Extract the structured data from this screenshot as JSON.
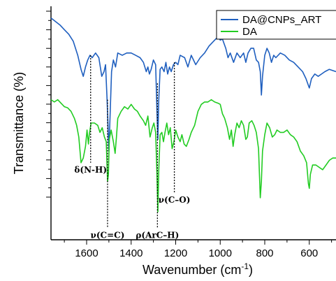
{
  "chart_data": {
    "type": "line",
    "xlabel": "Wavenumber (cm",
    "xlabel_sup": "-1",
    "xlabel_end": ")",
    "ylabel": "Transmittance (%)",
    "xlim": [
      1760,
      480
    ],
    "x_reversed": true,
    "xticks": [
      1600,
      1400,
      1200,
      1000,
      800,
      600
    ],
    "xtick_labels": [
      "1600",
      "1400",
      "1200",
      "1000",
      "800",
      "600"
    ],
    "ylim": [
      0,
      1
    ],
    "y_tick_labels_shown": false,
    "grid": false,
    "legend": "top-right",
    "series": [
      {
        "name": "DA@CNPs_ART",
        "color": "#1f5fbf",
        "points": [
          [
            1760,
            0.95
          ],
          [
            1740,
            0.935
          ],
          [
            1720,
            0.92
          ],
          [
            1700,
            0.9
          ],
          [
            1680,
            0.88
          ],
          [
            1660,
            0.85
          ],
          [
            1640,
            0.79
          ],
          [
            1625,
            0.73
          ],
          [
            1615,
            0.7
          ],
          [
            1605,
            0.74
          ],
          [
            1595,
            0.77
          ],
          [
            1585,
            0.79
          ],
          [
            1575,
            0.78
          ],
          [
            1560,
            0.8
          ],
          [
            1545,
            0.78
          ],
          [
            1532,
            0.7
          ],
          [
            1522,
            0.72
          ],
          [
            1515,
            0.75
          ],
          [
            1508,
            0.6
          ],
          [
            1500,
            0.38
          ],
          [
            1494,
            0.55
          ],
          [
            1488,
            0.72
          ],
          [
            1480,
            0.77
          ],
          [
            1470,
            0.74
          ],
          [
            1460,
            0.8
          ],
          [
            1440,
            0.79
          ],
          [
            1420,
            0.8
          ],
          [
            1400,
            0.8
          ],
          [
            1380,
            0.79
          ],
          [
            1360,
            0.78
          ],
          [
            1345,
            0.76
          ],
          [
            1332,
            0.72
          ],
          [
            1325,
            0.74
          ],
          [
            1318,
            0.71
          ],
          [
            1310,
            0.73
          ],
          [
            1300,
            0.77
          ],
          [
            1290,
            0.75
          ],
          [
            1284,
            0.55
          ],
          [
            1280,
            0.43
          ],
          [
            1276,
            0.6
          ],
          [
            1270,
            0.73
          ],
          [
            1262,
            0.74
          ],
          [
            1252,
            0.72
          ],
          [
            1244,
            0.76
          ],
          [
            1236,
            0.71
          ],
          [
            1228,
            0.74
          ],
          [
            1220,
            0.72
          ],
          [
            1210,
            0.75
          ],
          [
            1200,
            0.76
          ],
          [
            1190,
            0.75
          ],
          [
            1180,
            0.79
          ],
          [
            1160,
            0.78
          ],
          [
            1145,
            0.74
          ],
          [
            1130,
            0.79
          ],
          [
            1110,
            0.75
          ],
          [
            1090,
            0.78
          ],
          [
            1070,
            0.8
          ],
          [
            1050,
            0.83
          ],
          [
            1030,
            0.85
          ],
          [
            1010,
            0.87
          ],
          [
            1000,
            0.855
          ],
          [
            990,
            0.86
          ],
          [
            975,
            0.82
          ],
          [
            965,
            0.78
          ],
          [
            955,
            0.8
          ],
          [
            940,
            0.76
          ],
          [
            925,
            0.8
          ],
          [
            910,
            0.78
          ],
          [
            895,
            0.8
          ],
          [
            885,
            0.76
          ],
          [
            875,
            0.8
          ],
          [
            862,
            0.82
          ],
          [
            850,
            0.82
          ],
          [
            838,
            0.77
          ],
          [
            828,
            0.76
          ],
          [
            820,
            0.72
          ],
          [
            815,
            0.62
          ],
          [
            810,
            0.7
          ],
          [
            800,
            0.79
          ],
          [
            790,
            0.82
          ],
          [
            780,
            0.8
          ],
          [
            770,
            0.76
          ],
          [
            760,
            0.79
          ],
          [
            750,
            0.78
          ],
          [
            730,
            0.8
          ],
          [
            710,
            0.79
          ],
          [
            690,
            0.77
          ],
          [
            670,
            0.76
          ],
          [
            650,
            0.74
          ],
          [
            630,
            0.72
          ],
          [
            615,
            0.69
          ],
          [
            600,
            0.65
          ],
          [
            590,
            0.69
          ],
          [
            575,
            0.71
          ],
          [
            560,
            0.7
          ],
          [
            545,
            0.71
          ],
          [
            530,
            0.72
          ],
          [
            510,
            0.73
          ],
          [
            480,
            0.72
          ]
        ]
      },
      {
        "name": "DA",
        "color": "#22cc22",
        "points": [
          [
            1760,
            0.6
          ],
          [
            1745,
            0.59
          ],
          [
            1730,
            0.6
          ],
          [
            1715,
            0.585
          ],
          [
            1700,
            0.57
          ],
          [
            1685,
            0.565
          ],
          [
            1670,
            0.55
          ],
          [
            1655,
            0.52
          ],
          [
            1645,
            0.49
          ],
          [
            1635,
            0.44
          ],
          [
            1625,
            0.33
          ],
          [
            1615,
            0.35
          ],
          [
            1605,
            0.4
          ],
          [
            1598,
            0.47
          ],
          [
            1592,
            0.41
          ],
          [
            1588,
            0.45
          ],
          [
            1580,
            0.5
          ],
          [
            1565,
            0.5
          ],
          [
            1550,
            0.49
          ],
          [
            1540,
            0.46
          ],
          [
            1530,
            0.48
          ],
          [
            1520,
            0.44
          ],
          [
            1512,
            0.42
          ],
          [
            1506,
            0.25
          ],
          [
            1502,
            0.28
          ],
          [
            1498,
            0.43
          ],
          [
            1490,
            0.47
          ],
          [
            1480,
            0.42
          ],
          [
            1472,
            0.37
          ],
          [
            1466,
            0.44
          ],
          [
            1460,
            0.52
          ],
          [
            1445,
            0.55
          ],
          [
            1430,
            0.57
          ],
          [
            1415,
            0.56
          ],
          [
            1400,
            0.58
          ],
          [
            1385,
            0.56
          ],
          [
            1372,
            0.55
          ],
          [
            1360,
            0.53
          ],
          [
            1345,
            0.51
          ],
          [
            1335,
            0.49
          ],
          [
            1325,
            0.53
          ],
          [
            1315,
            0.44
          ],
          [
            1305,
            0.48
          ],
          [
            1298,
            0.5
          ],
          [
            1290,
            0.46
          ],
          [
            1284,
            0.28
          ],
          [
            1280,
            0.12
          ],
          [
            1276,
            0.3
          ],
          [
            1270,
            0.45
          ],
          [
            1262,
            0.46
          ],
          [
            1255,
            0.42
          ],
          [
            1248,
            0.46
          ],
          [
            1240,
            0.5
          ],
          [
            1232,
            0.45
          ],
          [
            1224,
            0.48
          ],
          [
            1216,
            0.39
          ],
          [
            1208,
            0.42
          ],
          [
            1200,
            0.47
          ],
          [
            1190,
            0.44
          ],
          [
            1180,
            0.42
          ],
          [
            1172,
            0.45
          ],
          [
            1162,
            0.41
          ],
          [
            1152,
            0.4
          ],
          [
            1140,
            0.43
          ],
          [
            1130,
            0.46
          ],
          [
            1115,
            0.49
          ],
          [
            1100,
            0.55
          ],
          [
            1085,
            0.58
          ],
          [
            1070,
            0.59
          ],
          [
            1055,
            0.59
          ],
          [
            1040,
            0.6
          ],
          [
            1025,
            0.59
          ],
          [
            1010,
            0.585
          ],
          [
            1000,
            0.58
          ],
          [
            990,
            0.54
          ],
          [
            980,
            0.52
          ],
          [
            968,
            0.48
          ],
          [
            958,
            0.43
          ],
          [
            950,
            0.47
          ],
          [
            942,
            0.4
          ],
          [
            935,
            0.45
          ],
          [
            925,
            0.5
          ],
          [
            915,
            0.48
          ],
          [
            905,
            0.51
          ],
          [
            895,
            0.49
          ],
          [
            885,
            0.43
          ],
          [
            878,
            0.44
          ],
          [
            870,
            0.5
          ],
          [
            858,
            0.51
          ],
          [
            848,
            0.49
          ],
          [
            838,
            0.46
          ],
          [
            828,
            0.39
          ],
          [
            820,
            0.18
          ],
          [
            815,
            0.25
          ],
          [
            810,
            0.38
          ],
          [
            800,
            0.45
          ],
          [
            790,
            0.5
          ],
          [
            778,
            0.48
          ],
          [
            766,
            0.44
          ],
          [
            755,
            0.45
          ],
          [
            745,
            0.47
          ],
          [
            730,
            0.46
          ],
          [
            715,
            0.46
          ],
          [
            700,
            0.47
          ],
          [
            685,
            0.45
          ],
          [
            670,
            0.44
          ],
          [
            655,
            0.42
          ],
          [
            640,
            0.38
          ],
          [
            625,
            0.36
          ],
          [
            612,
            0.33
          ],
          [
            604,
            0.24
          ],
          [
            600,
            0.22
          ],
          [
            595,
            0.28
          ],
          [
            585,
            0.32
          ],
          [
            570,
            0.32
          ],
          [
            555,
            0.31
          ],
          [
            540,
            0.3
          ],
          [
            525,
            0.32
          ],
          [
            510,
            0.34
          ],
          [
            495,
            0.35
          ],
          [
            480,
            0.35
          ]
        ]
      }
    ],
    "annotations": [
      {
        "label": "δ(N-H)",
        "x": 1582,
        "y_top": 0.79,
        "y_bottom": 0.33
      },
      {
        "label": "ν(C=C)",
        "x": 1506,
        "y_top": 0.6,
        "y_bottom": 0.05
      },
      {
        "label": "ρ(ArC–H)",
        "x": 1282,
        "y_top": 0.67,
        "y_bottom": 0.05
      },
      {
        "label": "ν(C–O)",
        "x": 1206,
        "y_top": 0.76,
        "y_bottom": 0.2
      }
    ]
  }
}
